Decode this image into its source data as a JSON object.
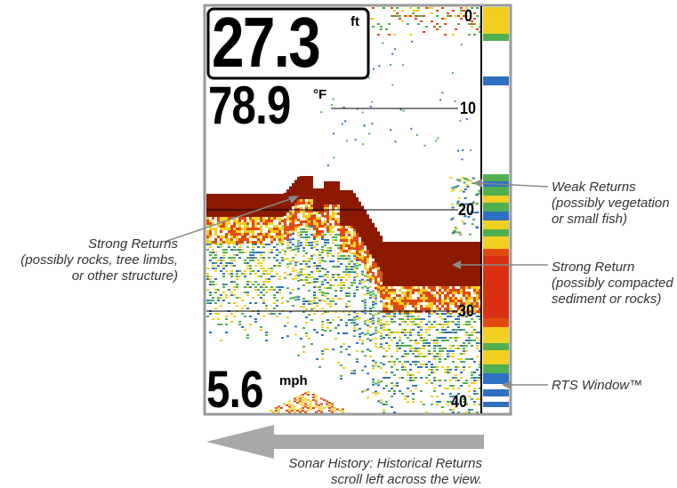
{
  "display": {
    "depth_value": "27.3",
    "depth_unit": "ft",
    "temp_value": "78.9",
    "temp_unit": "°F",
    "speed_value": "5.6",
    "speed_unit": "mph",
    "depth_scale": [
      "0",
      "10",
      "20",
      "30",
      "40"
    ]
  },
  "annotations": {
    "weak_returns": "Weak Returns\n(possibly vegetation\nor small fish)",
    "strong_returns_left": "Strong Returns\n(possibly rocks, tree limbs,\nor other structure)",
    "strong_return_right": "Strong Return\n(possibly compacted\nsediment or rocks)",
    "rts_window": "RTS Window™",
    "sonar_history": "Sonar History: Historical Returns\nscroll left across the view."
  },
  "colors": {
    "strong": "#8b1a00",
    "orange": "#e04a10",
    "yellow": "#f0d020",
    "green": "#50b050",
    "blue": "#3070c0",
    "frame": "#999999",
    "arrow": "#a8a8a8"
  }
}
